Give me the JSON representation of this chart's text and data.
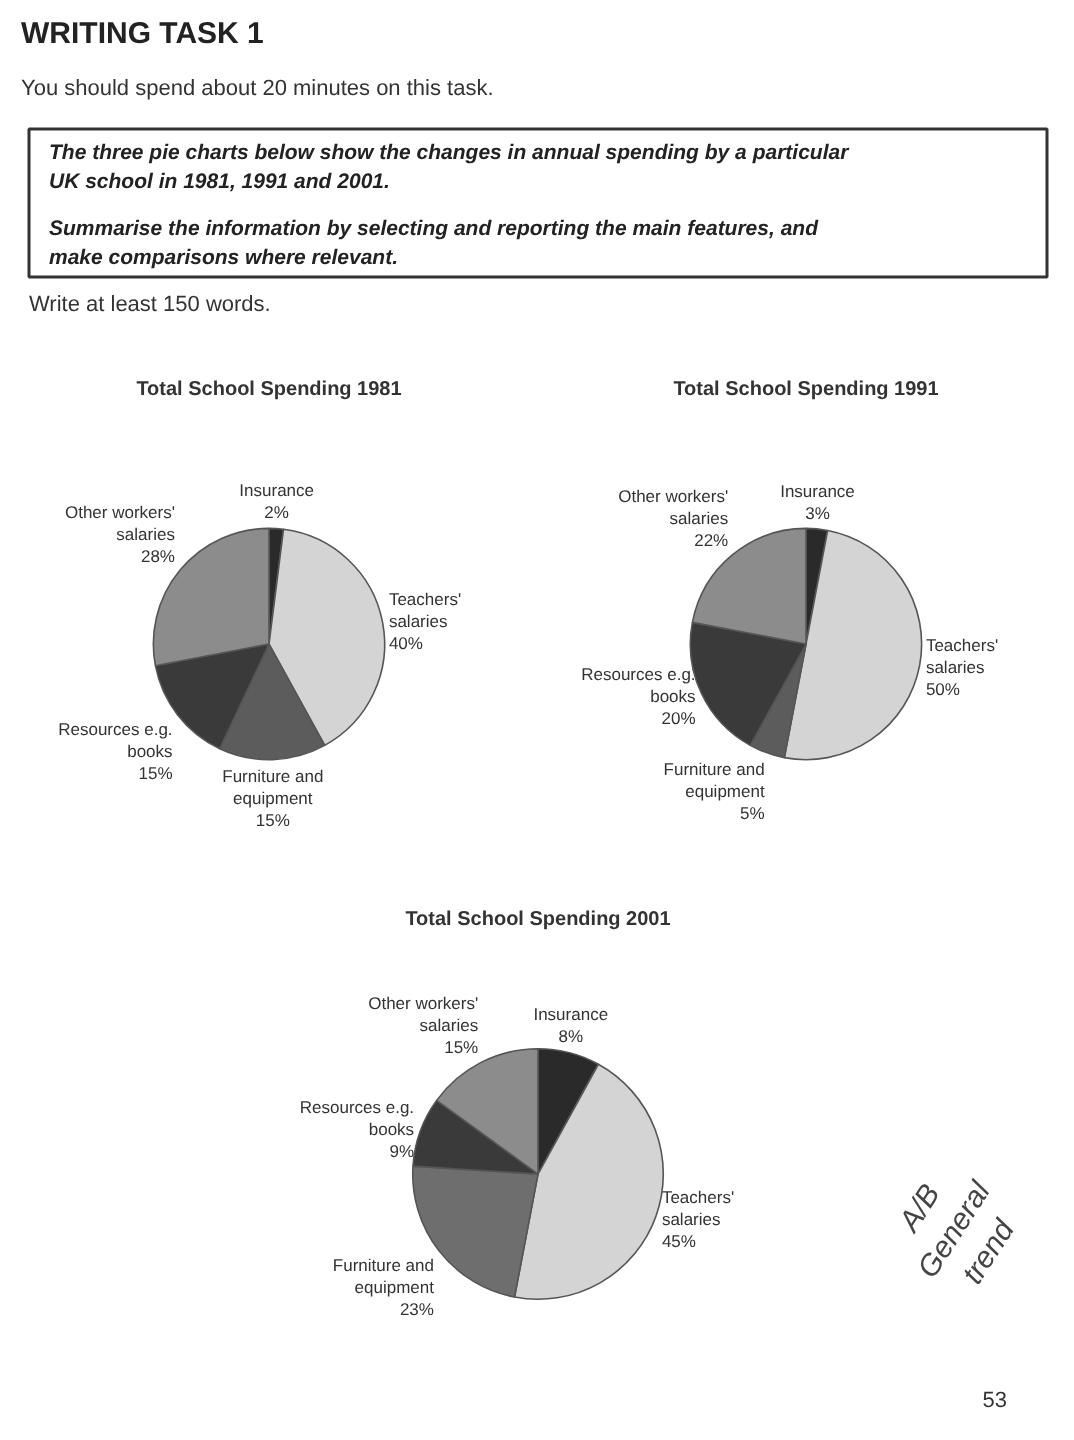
{
  "chart_data": [
    {
      "type": "other",
      "title": "WRITING TASK 1",
      "annotations": [
        "You should spend about 20 minutes on this task.",
        "The three pie charts below show the changes in annual spending by a particular UK school in 1981, 1991 and 2001.",
        "Summarise the information by selecting and reporting the main features, and make comparisons where relevant.",
        "Write at least 150 words."
      ]
    },
    {
      "type": "pie",
      "title": "Total School Spending 1981",
      "categories": [
        "Insurance",
        "Teachers' salaries",
        "Furniture and equipment",
        "Resources e.g. books",
        "Other workers' salaries"
      ],
      "values": [
        2,
        40,
        15,
        15,
        28
      ],
      "value_labels": [
        "2%",
        "40%",
        "15%",
        "15%",
        "28%"
      ],
      "colors": [
        "#2a2a2a",
        "#d4d4d4",
        "#5c5c5c",
        "#3a3a3a",
        "#8c8c8c"
      ]
    },
    {
      "type": "pie",
      "title": "Total School Spending 1991",
      "categories": [
        "Insurance",
        "Teachers' salaries",
        "Furniture and equipment",
        "Resources e.g. books",
        "Other workers' salaries"
      ],
      "values": [
        3,
        50,
        5,
        20,
        22
      ],
      "value_labels": [
        "3%",
        "50%",
        "5%",
        "20%",
        "22%"
      ],
      "colors": [
        "#2a2a2a",
        "#d4d4d4",
        "#5c5c5c",
        "#3a3a3a",
        "#8c8c8c"
      ]
    },
    {
      "type": "pie",
      "title": "Total School Spending 2001",
      "categories": [
        "Insurance",
        "Teachers' salaries",
        "Furniture and equipment",
        "Resources e.g. books",
        "Other workers' salaries"
      ],
      "values": [
        8,
        45,
        23,
        9,
        15
      ],
      "value_labels": [
        "8%",
        "45%",
        "23%",
        "9%",
        "15%"
      ],
      "colors": [
        "#2a2a2a",
        "#d4d4d4",
        "#6e6e6e",
        "#3a3a3a",
        "#8c8c8c"
      ],
      "annotations": [
        "A/B General trend",
        "53"
      ]
    }
  ]
}
